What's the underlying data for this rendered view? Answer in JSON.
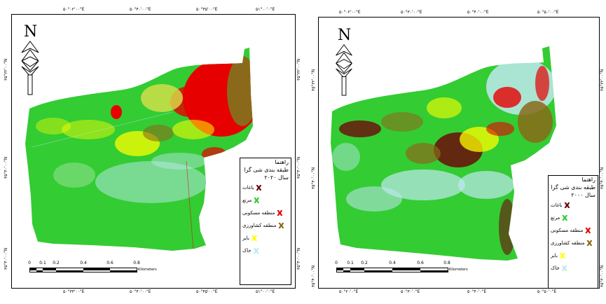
{
  "maps": [
    {
      "id": "map-2020",
      "top_coords": [
        "۵۰°۰۲'۰۰\"E",
        "۵۰°۴۰'۰۰\"E",
        "۵۰°۴۵'۰۰\"E",
        "۵۱°۰۰'۰\"E"
      ],
      "bottom_coords": [
        "۵۰°۳۳'۰۰\"E",
        "۵۰°۴۰'۰۰\"E",
        "۵۰°۴۵'۰۰\"E",
        "۵۱°۰۰'۰\"E"
      ],
      "left_coords": [
        "۳۵°۳۲'۰۰\"N",
        "۳۵°۴۰'۰۰\"N",
        "۳۵°۴۰'۰۰\"N"
      ],
      "right_coords": [
        "۳۵°۳۲'۰۰\"N",
        "۳۵°۴۰'۰۰\"N",
        "۳۵°۴۰'۰۰\"N"
      ],
      "north_label": "N",
      "legend": {
        "title": "راهنما",
        "subtitle": "طبقه بندی شی گرا",
        "year": "سال ۲۰۲۰",
        "items": [
          {
            "label": "باغات",
            "color": "#6b0a0a"
          },
          {
            "label": "مرتع",
            "color": "#33cc33"
          },
          {
            "label": "منطقه مسکونی",
            "color": "#e60000"
          },
          {
            "label": "منطقه کشاورزی",
            "color": "#8a6a1a"
          },
          {
            "label": "بایر",
            "color": "#ffff00"
          },
          {
            "label": "خاک",
            "color": "#bfe8f0"
          }
        ]
      },
      "scale": {
        "ticks": [
          "0",
          "0.1",
          "0.2",
          "0.4",
          "0.6",
          "0.8"
        ],
        "unit": "Kilometers"
      }
    },
    {
      "id": "map-2000",
      "top_coords": [
        "۵۰°۰۲'۰۰\"E",
        "۵۰°۳۰'۰۰\"E",
        "۵۰°۴۰'۰۰\"E",
        "۵۰°۵۰'۰۰\"E"
      ],
      "bottom_coords": [
        "۵۰°۲۰'۰\"E",
        "۵۰°۳۰'۰\"E",
        "۵۰°۴۰'۰\"E",
        "۵۰°۵۰'۰\"E"
      ],
      "left_coords": [
        "۳۵°۳۲'۰۰\"N",
        "۳۵°۴۰'۰۰\"N",
        "۳۵°۴۰'۰۰\"N"
      ],
      "right_coords": [
        "۳۵°۳۲'۰۰\"N",
        "۳۵°۴۰'۰۰\"N",
        "۳۵°۳۰'۰۰\"N"
      ],
      "north_label": "N",
      "legend": {
        "title": "راهنما",
        "subtitle": "طبقه بندی شی گرا",
        "year": "سال ۲۰۰۰",
        "items": [
          {
            "label": "باغات",
            "color": "#6b0a0a"
          },
          {
            "label": "مرتع",
            "color": "#33cc33"
          },
          {
            "label": "منطقه مسکونی",
            "color": "#e60000"
          },
          {
            "label": "منطقه کشاورزی",
            "color": "#8a6a1a"
          },
          {
            "label": "بایر",
            "color": "#ffff00"
          },
          {
            "label": "خاک",
            "color": "#bfe8f0"
          }
        ]
      },
      "scale": {
        "ticks": [
          "0",
          "0.1",
          "0.2",
          "0.4",
          "0.6",
          "0.8"
        ],
        "unit": "Kilometers"
      }
    }
  ]
}
